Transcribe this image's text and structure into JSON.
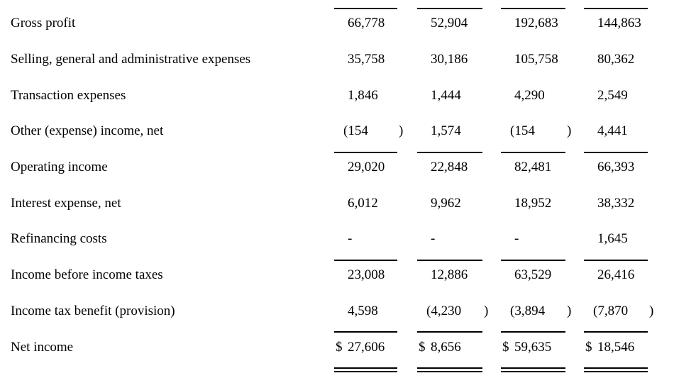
{
  "styles": {
    "background": "#ffffff",
    "text_color": "#000000",
    "rule_color": "#000000"
  },
  "table": {
    "description": "income-statement-excerpt",
    "rows": [
      {
        "label": "Gross profit",
        "rule_above": true,
        "double_below": false,
        "cells": [
          {
            "dollar": "",
            "value": "66,778",
            "paren": ""
          },
          {
            "dollar": "",
            "value": "52,904",
            "paren": ""
          },
          {
            "dollar": "",
            "value": "192,683",
            "paren": ""
          },
          {
            "dollar": "",
            "value": "144,863",
            "paren": ""
          }
        ]
      },
      {
        "label": "Selling, general and administrative expenses",
        "rule_above": false,
        "double_below": false,
        "cells": [
          {
            "dollar": "",
            "value": "35,758",
            "paren": ""
          },
          {
            "dollar": "",
            "value": "30,186",
            "paren": ""
          },
          {
            "dollar": "",
            "value": "105,758",
            "paren": ""
          },
          {
            "dollar": "",
            "value": "80,362",
            "paren": ""
          }
        ]
      },
      {
        "label": "Transaction expenses",
        "rule_above": false,
        "double_below": false,
        "cells": [
          {
            "dollar": "",
            "value": "1,846",
            "paren": ""
          },
          {
            "dollar": "",
            "value": "1,444",
            "paren": ""
          },
          {
            "dollar": "",
            "value": "4,290",
            "paren": ""
          },
          {
            "dollar": "",
            "value": "2,549",
            "paren": ""
          }
        ]
      },
      {
        "label": "Other (expense) income, net",
        "rule_above": false,
        "double_below": false,
        "cells": [
          {
            "dollar": "",
            "value": "(154",
            "paren": ")"
          },
          {
            "dollar": "",
            "value": "1,574",
            "paren": ""
          },
          {
            "dollar": "",
            "value": "(154",
            "paren": ")"
          },
          {
            "dollar": "",
            "value": "4,441",
            "paren": ""
          }
        ]
      },
      {
        "label": "Operating income",
        "rule_above": true,
        "double_below": false,
        "cells": [
          {
            "dollar": "",
            "value": "29,020",
            "paren": ""
          },
          {
            "dollar": "",
            "value": "22,848",
            "paren": ""
          },
          {
            "dollar": "",
            "value": "82,481",
            "paren": ""
          },
          {
            "dollar": "",
            "value": "66,393",
            "paren": ""
          }
        ]
      },
      {
        "label": "Interest expense, net",
        "rule_above": false,
        "double_below": false,
        "cells": [
          {
            "dollar": "",
            "value": "6,012",
            "paren": ""
          },
          {
            "dollar": "",
            "value": "9,962",
            "paren": ""
          },
          {
            "dollar": "",
            "value": "18,952",
            "paren": ""
          },
          {
            "dollar": "",
            "value": "38,332",
            "paren": ""
          }
        ]
      },
      {
        "label": "Refinancing costs",
        "rule_above": false,
        "double_below": false,
        "cells": [
          {
            "dollar": "",
            "value": "-",
            "paren": ""
          },
          {
            "dollar": "",
            "value": "-",
            "paren": ""
          },
          {
            "dollar": "",
            "value": "-",
            "paren": ""
          },
          {
            "dollar": "",
            "value": "1,645",
            "paren": ""
          }
        ]
      },
      {
        "label": "Income before income taxes",
        "rule_above": true,
        "double_below": false,
        "cells": [
          {
            "dollar": "",
            "value": "23,008",
            "paren": ""
          },
          {
            "dollar": "",
            "value": "12,886",
            "paren": ""
          },
          {
            "dollar": "",
            "value": "63,529",
            "paren": ""
          },
          {
            "dollar": "",
            "value": "26,416",
            "paren": ""
          }
        ]
      },
      {
        "label": "Income tax benefit (provision)",
        "rule_above": false,
        "double_below": false,
        "cells": [
          {
            "dollar": "",
            "value": "4,598",
            "paren": ""
          },
          {
            "dollar": "",
            "value": "(4,230",
            "paren": ")"
          },
          {
            "dollar": "",
            "value": "(3,894",
            "paren": ")"
          },
          {
            "dollar": "",
            "value": "(7,870",
            "paren": ")"
          }
        ]
      },
      {
        "label": "Net income",
        "rule_above": true,
        "double_below": true,
        "cells": [
          {
            "dollar": "$",
            "value": "27,606",
            "paren": ""
          },
          {
            "dollar": "$",
            "value": "8,656",
            "paren": ""
          },
          {
            "dollar": "$",
            "value": "59,635",
            "paren": ""
          },
          {
            "dollar": "$",
            "value": "18,546",
            "paren": ""
          }
        ]
      }
    ]
  }
}
